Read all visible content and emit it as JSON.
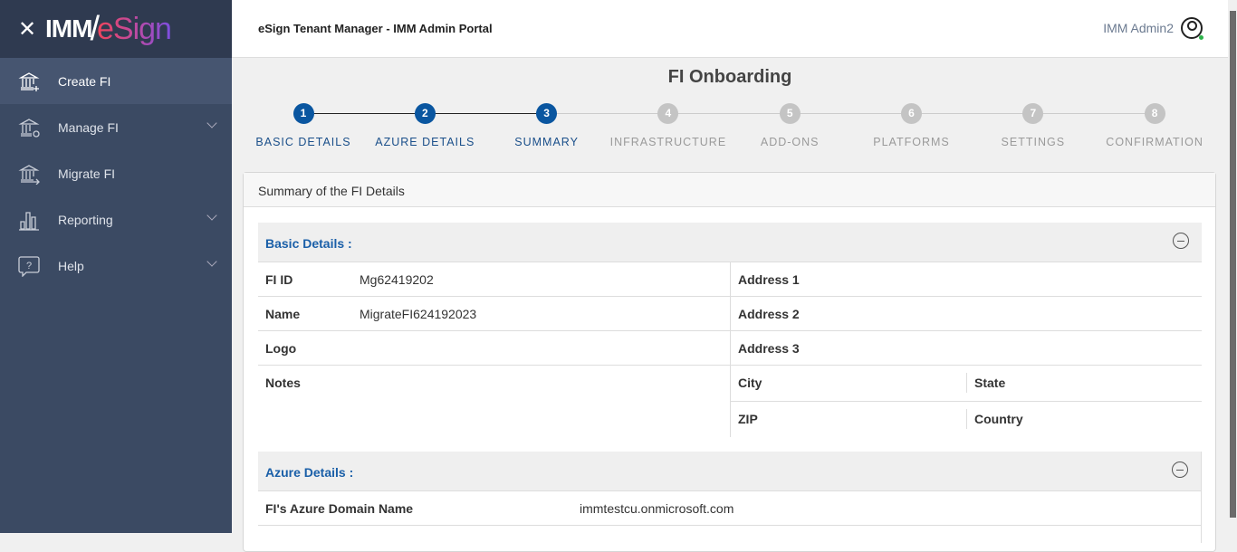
{
  "sidebar": {
    "close_icon": "close-icon",
    "logo_text_1": "IMM",
    "logo_text_2": "eSign",
    "items": [
      {
        "label": "Create FI",
        "icon": "bank-plus-icon",
        "active": true
      },
      {
        "label": "Manage FI",
        "icon": "bank-gear-icon",
        "expandable": true
      },
      {
        "label": "Migrate FI",
        "icon": "bank-arrow-icon"
      },
      {
        "label": "Reporting",
        "icon": "bar-chart-icon",
        "expandable": true
      },
      {
        "label": "Help",
        "icon": "help-bubble-icon",
        "expandable": true
      }
    ]
  },
  "header": {
    "title": "eSign Tenant Manager - IMM Admin Portal",
    "user": "IMM Admin2"
  },
  "page": {
    "title": "FI Onboarding"
  },
  "stepper": {
    "current": 3,
    "active_color": "#0a56a0",
    "inactive_color": "#c4c4c4",
    "steps": [
      "BASIC DETAILS",
      "AZURE DETAILS",
      "SUMMARY",
      "INFRASTRUCTURE",
      "ADD-ONS",
      "PLATFORMS",
      "SETTINGS",
      "CONFIRMATION"
    ]
  },
  "card": {
    "title": "Summary of the FI Details",
    "basic": {
      "title": "Basic Details :",
      "fi_id_label": "FI ID",
      "fi_id": "Mg62419202",
      "name_label": "Name",
      "name": "MigrateFI624192023",
      "logo_label": "Logo",
      "notes_label": "Notes",
      "address1": "Address 1",
      "address2": "Address 2",
      "address3": "Address 3",
      "city": "City",
      "state": "State",
      "zip": "ZIP",
      "country": "Country"
    },
    "azure": {
      "title": "Azure Details :",
      "domain_label": "FI's Azure Domain Name",
      "domain": "immtestcu.onmicrosoft.com"
    }
  }
}
